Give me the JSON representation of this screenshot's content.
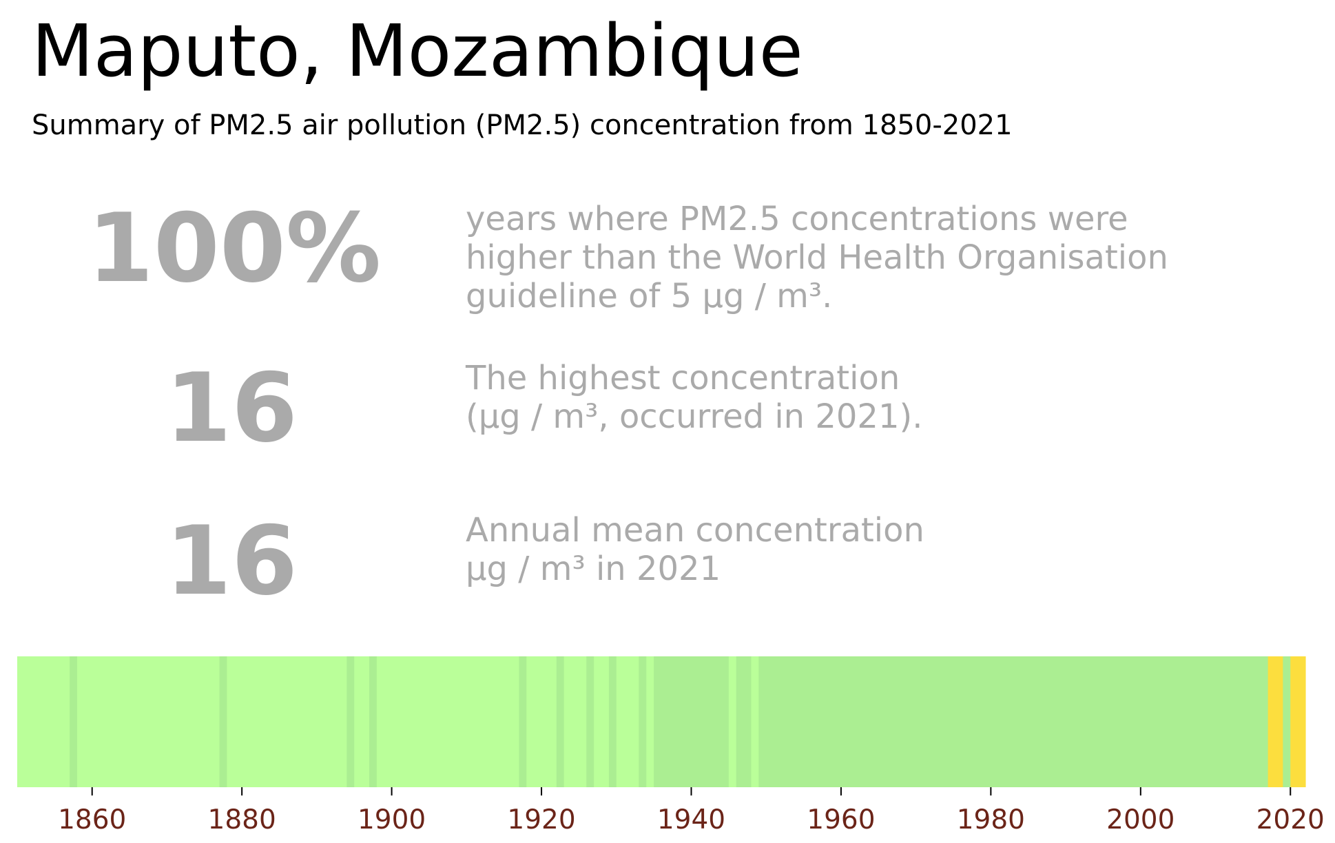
{
  "title": "Maputo, Mozambique",
  "subtitle": "Summary of PM2.5 air pollution (PM2.5) concentration from 1850-2021",
  "stats": [
    {
      "value": "100%",
      "lines": [
        "years where PM2.5 concentrations were",
        "higher than the World Health Organisation",
        "guideline of 5 µg / m³."
      ]
    },
    {
      "value": "16",
      "lines": [
        "The highest concentration",
        "(µg / m³, occurred in 2021)."
      ]
    },
    {
      "value": "16",
      "lines": [
        "Annual mean concentration",
        "µg / m³ in 2021"
      ]
    }
  ],
  "chart_data": {
    "type": "heatmap",
    "title": "",
    "xlabel": "",
    "ylabel": "",
    "xlim": [
      1850,
      2022
    ],
    "xticks": [
      1860,
      1880,
      1900,
      1920,
      1940,
      1960,
      1980,
      2000,
      2020
    ],
    "tick_color": "#6b2418",
    "palette": {
      "light": "#baff99",
      "mid": "#abee92",
      "yellow": "#fcde3e"
    },
    "segments": [
      {
        "start": 1850,
        "end": 1857,
        "color": "light"
      },
      {
        "start": 1857,
        "end": 1858,
        "color": "mid"
      },
      {
        "start": 1858,
        "end": 1877,
        "color": "light"
      },
      {
        "start": 1877,
        "end": 1878,
        "color": "mid"
      },
      {
        "start": 1878,
        "end": 1894,
        "color": "light"
      },
      {
        "start": 1894,
        "end": 1895,
        "color": "mid"
      },
      {
        "start": 1895,
        "end": 1897,
        "color": "light"
      },
      {
        "start": 1897,
        "end": 1898,
        "color": "mid"
      },
      {
        "start": 1898,
        "end": 1917,
        "color": "light"
      },
      {
        "start": 1917,
        "end": 1918,
        "color": "mid"
      },
      {
        "start": 1918,
        "end": 1922,
        "color": "light"
      },
      {
        "start": 1922,
        "end": 1923,
        "color": "mid"
      },
      {
        "start": 1923,
        "end": 1926,
        "color": "light"
      },
      {
        "start": 1926,
        "end": 1927,
        "color": "mid"
      },
      {
        "start": 1927,
        "end": 1929,
        "color": "light"
      },
      {
        "start": 1929,
        "end": 1930,
        "color": "mid"
      },
      {
        "start": 1930,
        "end": 1933,
        "color": "light"
      },
      {
        "start": 1933,
        "end": 1934,
        "color": "mid"
      },
      {
        "start": 1934,
        "end": 1935,
        "color": "light"
      },
      {
        "start": 1935,
        "end": 1945,
        "color": "mid"
      },
      {
        "start": 1945,
        "end": 1946,
        "color": "light"
      },
      {
        "start": 1946,
        "end": 1948,
        "color": "mid"
      },
      {
        "start": 1948,
        "end": 1949,
        "color": "light"
      },
      {
        "start": 1949,
        "end": 2017,
        "color": "mid"
      },
      {
        "start": 2017,
        "end": 2019,
        "color": "yellow"
      },
      {
        "start": 2019,
        "end": 2020,
        "color": "mid"
      },
      {
        "start": 2020,
        "end": 2022,
        "color": "yellow"
      }
    ]
  }
}
